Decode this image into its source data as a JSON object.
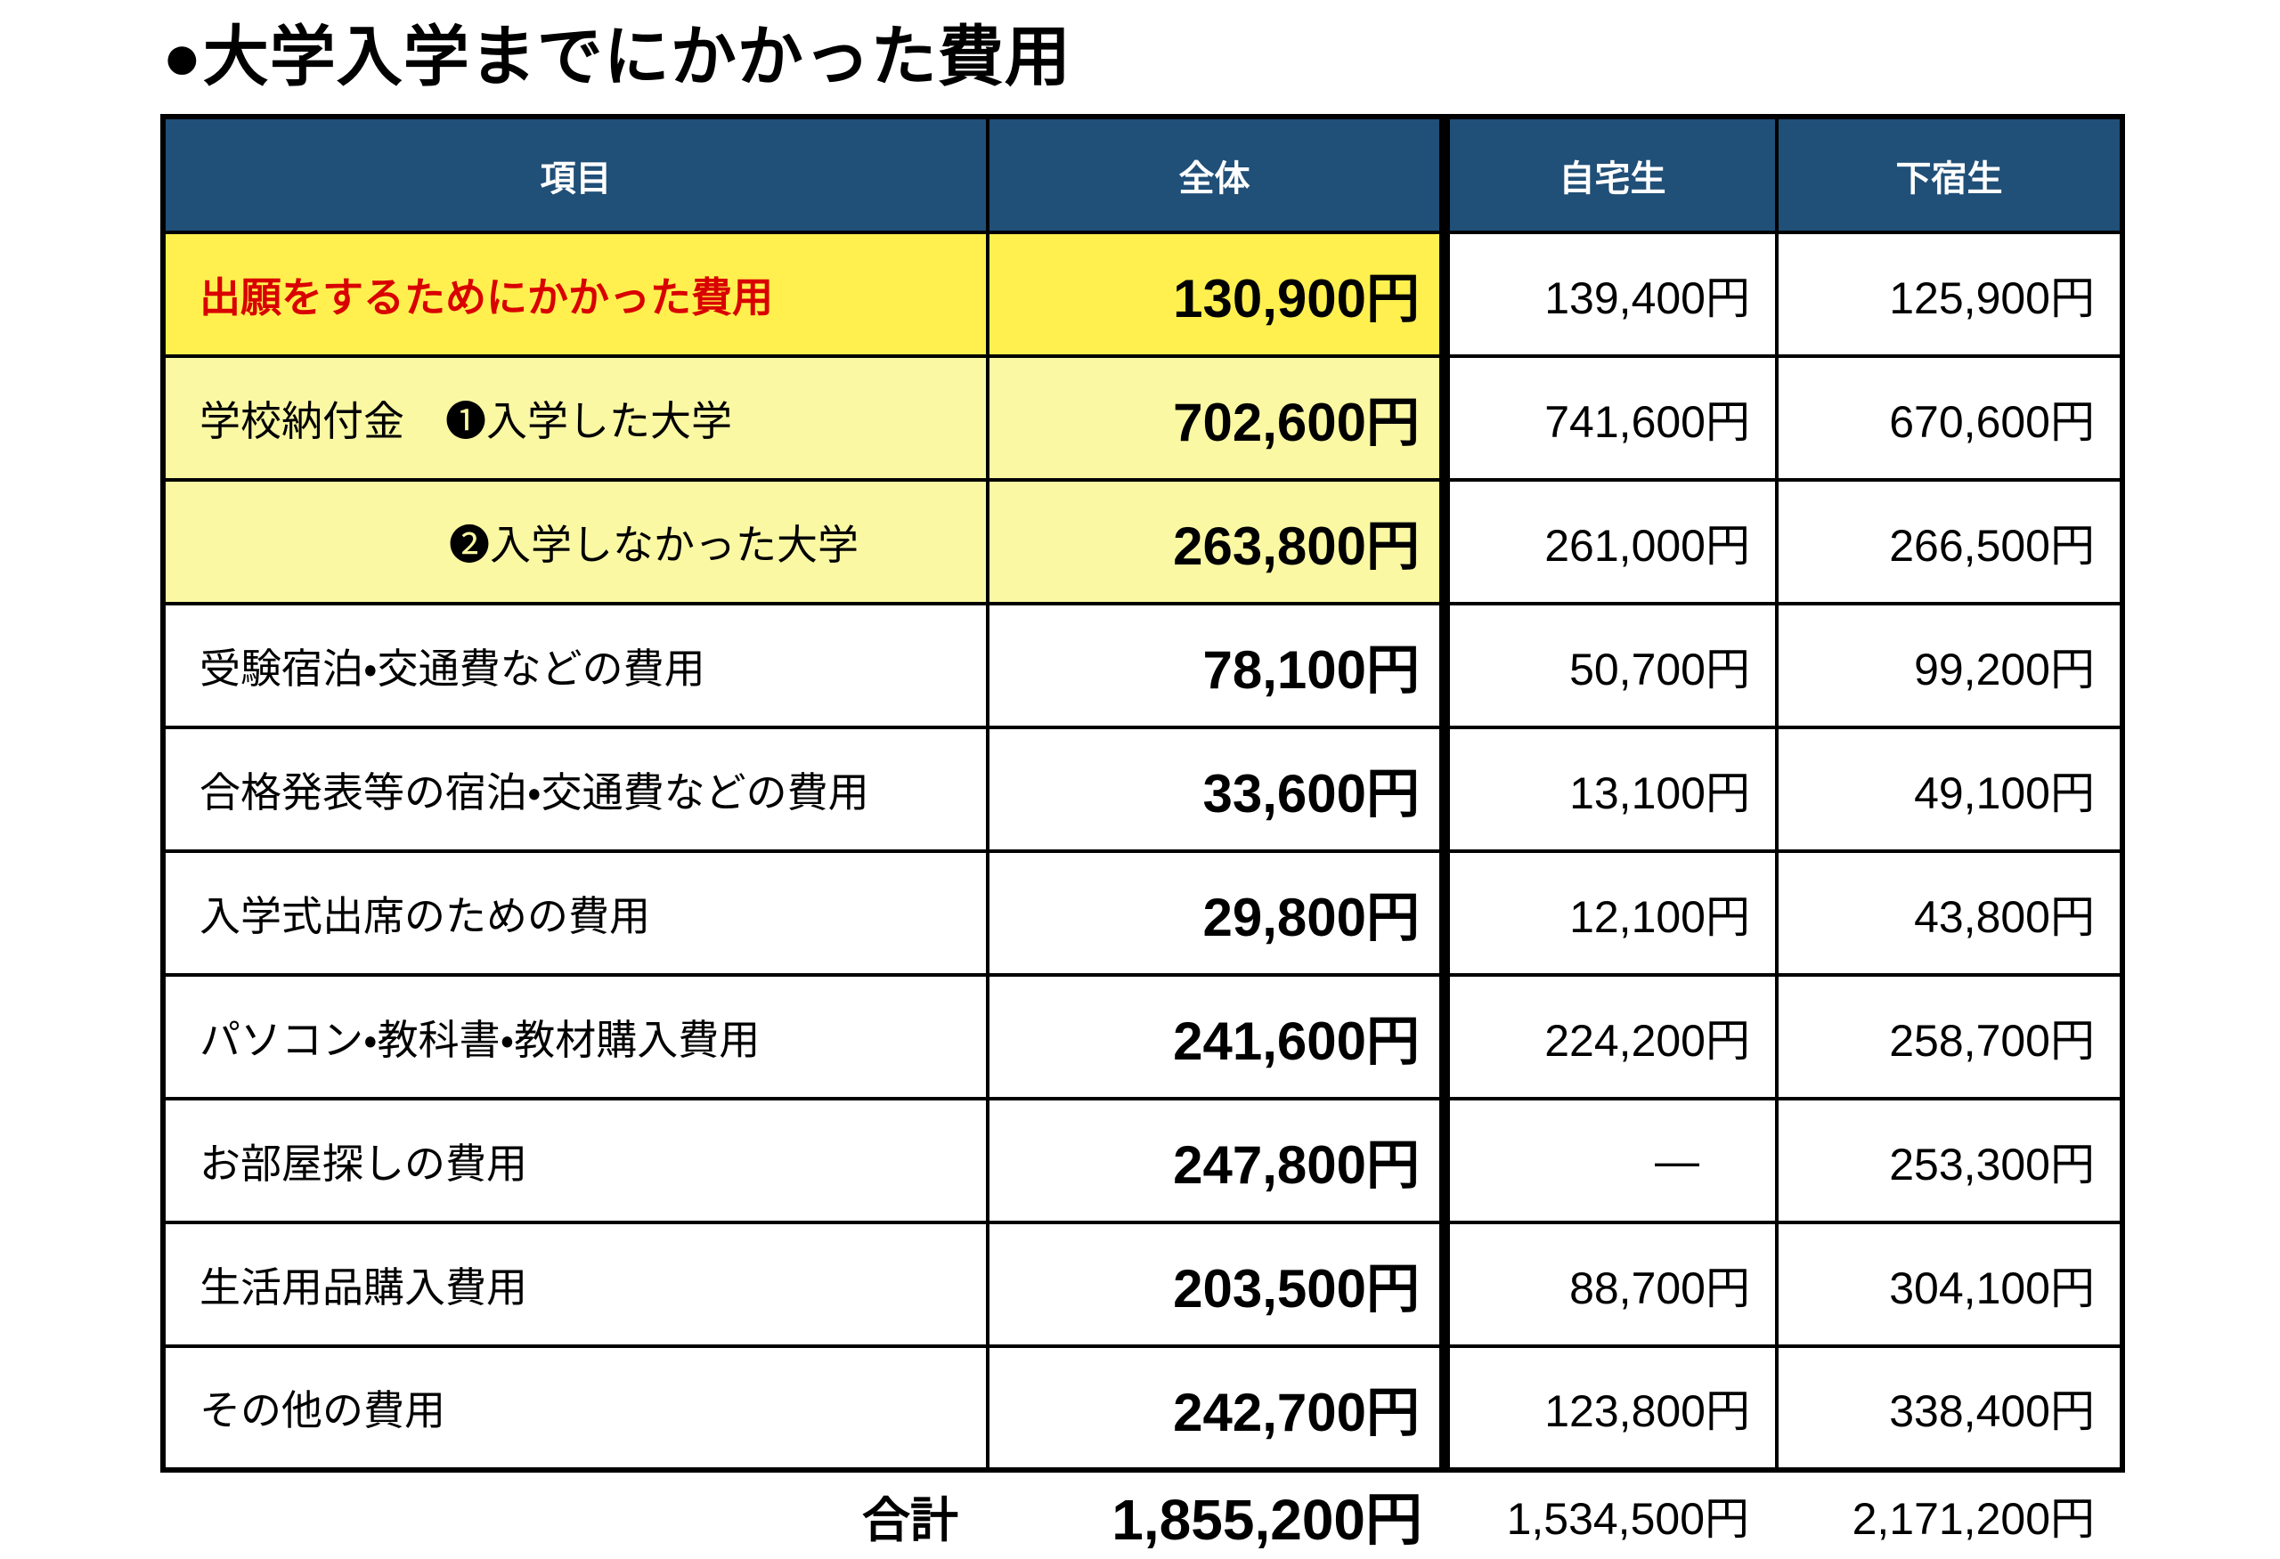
{
  "title": "●大学入学までにかかった費用",
  "table": {
    "columns": [
      "項目",
      "全体",
      "自宅生",
      "下宿生"
    ],
    "rows": [
      {
        "item": "出願をするためにかかった費用",
        "zentai": "130,900円",
        "jitaku": "139,400円",
        "geshuku": "125,900円",
        "row_style": "bright",
        "item_style": "red-bold",
        "indent": false
      },
      {
        "item": "学校納付金　❶入学した大学",
        "zentai": "702,600円",
        "jitaku": "741,600円",
        "geshuku": "670,600円",
        "row_style": "pale",
        "item_style": "normal",
        "indent": false
      },
      {
        "item": "❷入学しなかった大学",
        "zentai": "263,800円",
        "jitaku": "261,000円",
        "geshuku": "266,500円",
        "row_style": "pale",
        "item_style": "normal",
        "indent": true
      },
      {
        "item": "受験宿泊・交通費などの費用",
        "zentai": "78,100円",
        "jitaku": "50,700円",
        "geshuku": "99,200円",
        "row_style": "plain",
        "item_style": "normal",
        "indent": false
      },
      {
        "item": "合格発表等の宿泊・交通費などの費用",
        "zentai": "33,600円",
        "jitaku": "13,100円",
        "geshuku": "49,100円",
        "row_style": "plain",
        "item_style": "normal",
        "indent": false
      },
      {
        "item": "入学式出席のための費用",
        "zentai": "29,800円",
        "jitaku": "12,100円",
        "geshuku": "43,800円",
        "row_style": "plain",
        "item_style": "normal",
        "indent": false
      },
      {
        "item": "パソコン・教科書・教材購入費用",
        "zentai": "241,600円",
        "jitaku": "224,200円",
        "geshuku": "258,700円",
        "row_style": "plain",
        "item_style": "normal",
        "indent": false
      },
      {
        "item": "お部屋探しの費用",
        "zentai": "247,800円",
        "jitaku": "—",
        "geshuku": "253,300円",
        "row_style": "plain",
        "item_style": "normal",
        "indent": false
      },
      {
        "item": "生活用品購入費用",
        "zentai": "203,500円",
        "jitaku": "88,700円",
        "geshuku": "304,100円",
        "row_style": "plain",
        "item_style": "normal",
        "indent": false
      },
      {
        "item": "その他の費用",
        "zentai": "242,700円",
        "jitaku": "123,800円",
        "geshuku": "338,400円",
        "row_style": "plain",
        "item_style": "normal",
        "indent": false
      }
    ],
    "total": {
      "label": "合計",
      "zentai": "1,855,200円",
      "jitaku": "1,534,500円",
      "geshuku": "2,171,200円"
    }
  },
  "colors": {
    "header_bg": "#204F78",
    "header_text": "#FFFFFF",
    "highlight_bright": "#FFF04F",
    "highlight_pale": "#FAF8A3",
    "alert_red": "#D90000",
    "border_black": "#000000"
  },
  "chart_data": {
    "type": "table",
    "title": "●大学入学までにかかった費用",
    "columns": [
      "項目",
      "全体",
      "自宅生",
      "下宿生"
    ],
    "rows": [
      [
        "出願をするためにかかった費用",
        "130,900円",
        "139,400円",
        "125,900円"
      ],
      [
        "学校納付金　❶入学した大学",
        "702,600円",
        "741,600円",
        "670,600円"
      ],
      [
        "❷入学しなかった大学",
        "263,800円",
        "261,000円",
        "266,500円"
      ],
      [
        "受験宿泊・交通費などの費用",
        "78,100円",
        "50,700円",
        "99,200円"
      ],
      [
        "合格発表等の宿泊・交通費などの費用",
        "33,600円",
        "13,100円",
        "49,100円"
      ],
      [
        "入学式出席のための費用",
        "29,800円",
        "12,100円",
        "43,800円"
      ],
      [
        "パソコン・教科書・教材購入費用",
        "241,600円",
        "224,200円",
        "258,700円"
      ],
      [
        "お部屋探しの費用",
        "247,800円",
        "—",
        "253,300円"
      ],
      [
        "生活用品購入費用",
        "203,500円",
        "88,700円",
        "304,100円"
      ],
      [
        "その他の費用",
        "242,700円",
        "123,800円",
        "338,400円"
      ]
    ],
    "total_row": [
      "合計",
      "1,855,200円",
      "1,534,500円",
      "2,171,200円"
    ],
    "values_numeric": {
      "zentai": [
        130900,
        702600,
        263800,
        78100,
        33600,
        29800,
        241600,
        247800,
        203500,
        242700
      ],
      "jitaku": [
        139400,
        741600,
        261000,
        50700,
        13100,
        12100,
        224200,
        null,
        88700,
        123800
      ],
      "geshuku": [
        125900,
        670600,
        266500,
        99200,
        49100,
        43800,
        258700,
        253300,
        304100,
        338400
      ],
      "totals": {
        "zentai": 1855200,
        "jitaku": 1534500,
        "geshuku": 2171200
      }
    }
  }
}
